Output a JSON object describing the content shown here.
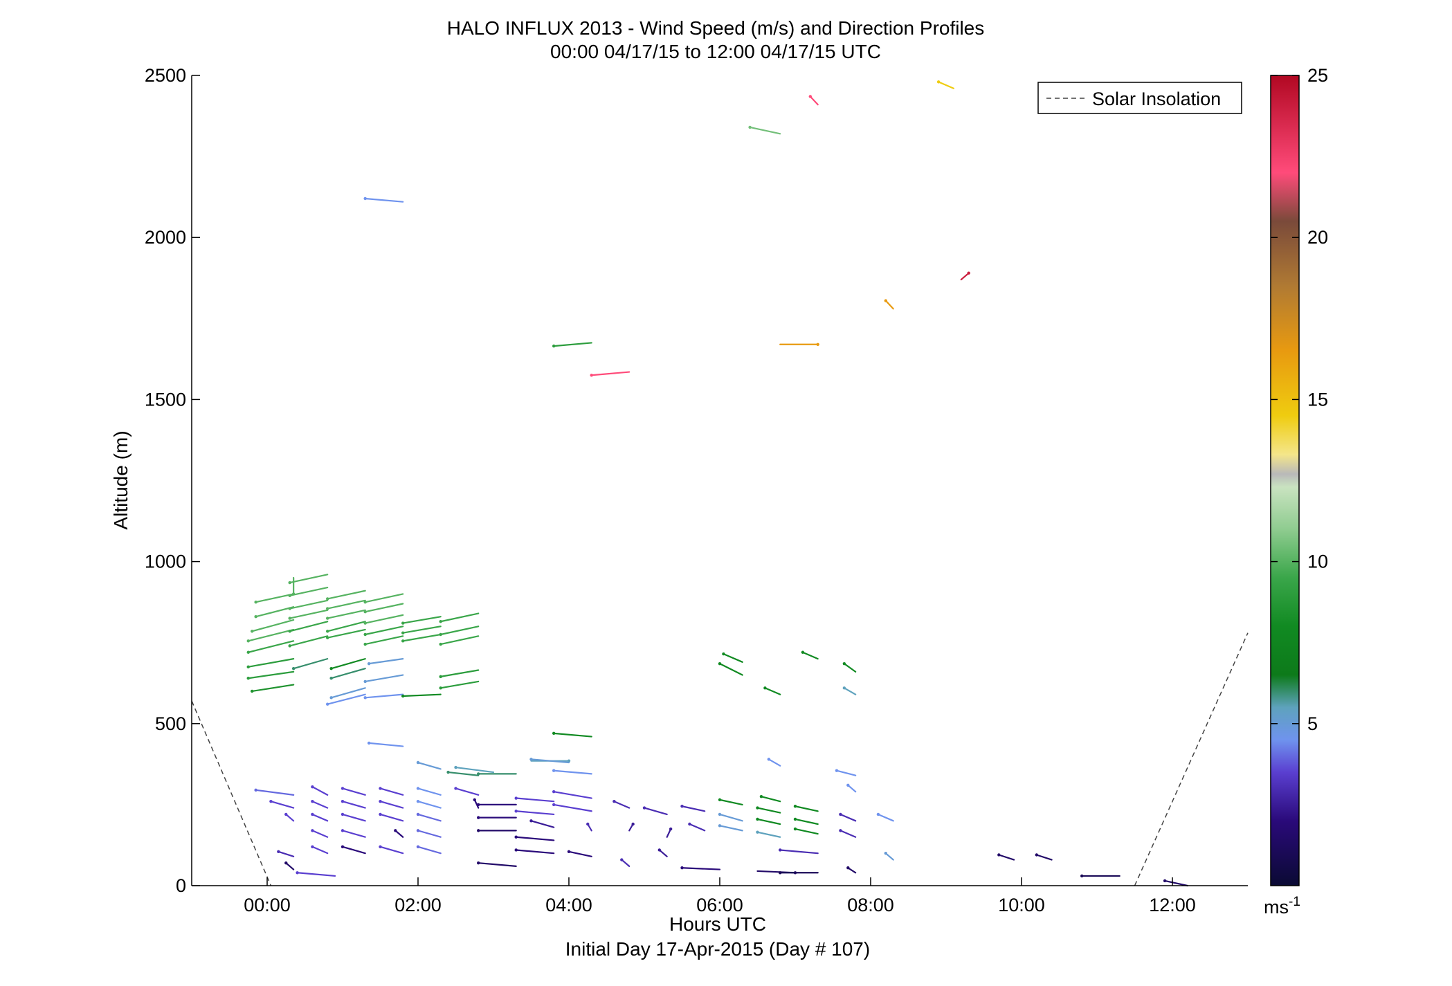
{
  "chart_data": {
    "type": "vector-field",
    "title": "HALO INFLUX 2013 - Wind Speed (m/s) and Direction Profiles",
    "subtitle": "00:00 04/17/15 to 12:00 04/17/15  UTC",
    "xlabel": "Hours UTC",
    "xlabel2": "Initial Day 17-Apr-2015 (Day # 107)",
    "ylabel": "Altitude (m)",
    "xlim": [
      -1,
      13
    ],
    "ylim": [
      0,
      2500
    ],
    "x_ticks": [
      0,
      2,
      4,
      6,
      8,
      10,
      12
    ],
    "x_tick_labels": [
      "00:00",
      "02:00",
      "04:00",
      "06:00",
      "08:00",
      "10:00",
      "12:00"
    ],
    "y_ticks": [
      0,
      500,
      1000,
      1500,
      2000,
      2500
    ],
    "y_tick_labels": [
      "0",
      "500",
      "1000",
      "1500",
      "2000",
      "2500"
    ],
    "legend": {
      "label": "Solar Insolation",
      "placement": "top-right"
    },
    "colorbar": {
      "min": 0,
      "max": 25,
      "ticks": [
        5,
        10,
        15,
        20,
        25
      ],
      "tick_labels": [
        "5",
        "10",
        "15",
        "20",
        "25"
      ],
      "unit_label": "ms",
      "unit_exponent": "-1",
      "stops": [
        [
          0,
          "#0a0a33"
        ],
        [
          2,
          "#2a0a7a"
        ],
        [
          3.5,
          "#5a3fd0"
        ],
        [
          4.5,
          "#6f93ee"
        ],
        [
          5.5,
          "#5ea2bd"
        ],
        [
          6.5,
          "#0d7a1a"
        ],
        [
          8,
          "#118a22"
        ],
        [
          9.5,
          "#3aa64a"
        ],
        [
          11,
          "#8fcc90"
        ],
        [
          12.3,
          "#c9e3c0"
        ],
        [
          12.7,
          "#b9b9b9"
        ],
        [
          13.3,
          "#f4e68a"
        ],
        [
          14.5,
          "#efcc10"
        ],
        [
          16.5,
          "#e89a10"
        ],
        [
          18.5,
          "#b07a33"
        ],
        [
          20.5,
          "#7a4a3a"
        ],
        [
          22,
          "#ff4b7a"
        ],
        [
          25,
          "#b10822"
        ]
      ]
    },
    "solar_insolation": [
      {
        "x": [
          -1.0,
          0.05
        ],
        "y": [
          570,
          0
        ]
      },
      {
        "x": [
          11.5,
          13.0
        ],
        "y": [
          0,
          780
        ]
      }
    ],
    "barbs": [
      [
        0.35,
        950,
        0,
        -0.5,
        10
      ],
      [
        0.35,
        900,
        -0.5,
        -0.25,
        10
      ],
      [
        0.35,
        860,
        -0.5,
        -0.3,
        10
      ],
      [
        0.35,
        820,
        -0.55,
        -0.35,
        10
      ],
      [
        0.35,
        790,
        -0.6,
        -0.35,
        10
      ],
      [
        0.35,
        755,
        -0.6,
        -0.35,
        9.5
      ],
      [
        0.35,
        700,
        -0.6,
        -0.25,
        9
      ],
      [
        0.35,
        660,
        -0.6,
        -0.2,
        9
      ],
      [
        0.35,
        620,
        -0.55,
        -0.2,
        8.5
      ],
      [
        0.8,
        960,
        -0.5,
        -0.25,
        10
      ],
      [
        0.8,
        920,
        -0.5,
        -0.25,
        10
      ],
      [
        0.8,
        880,
        -0.5,
        -0.25,
        10
      ],
      [
        0.8,
        850,
        -0.5,
        -0.25,
        10
      ],
      [
        0.8,
        815,
        -0.5,
        -0.3,
        9.5
      ],
      [
        0.8,
        770,
        -0.5,
        -0.3,
        9.5
      ],
      [
        0.8,
        700,
        -0.45,
        -0.3,
        6
      ],
      [
        1.3,
        910,
        -0.5,
        -0.25,
        10
      ],
      [
        1.3,
        880,
        -0.5,
        -0.25,
        10
      ],
      [
        1.3,
        850,
        -0.5,
        -0.25,
        10
      ],
      [
        1.3,
        815,
        -0.5,
        -0.3,
        9.5
      ],
      [
        1.3,
        790,
        -0.5,
        -0.25,
        9.5
      ],
      [
        1.3,
        700,
        -0.45,
        -0.3,
        8
      ],
      [
        1.3,
        670,
        -0.45,
        -0.3,
        6
      ],
      [
        1.3,
        610,
        -0.45,
        -0.3,
        5
      ],
      [
        1.3,
        590,
        -0.5,
        -0.3,
        4.5
      ],
      [
        1.8,
        900,
        -0.5,
        -0.25,
        10
      ],
      [
        1.8,
        870,
        -0.5,
        -0.25,
        10
      ],
      [
        1.8,
        835,
        -0.5,
        -0.25,
        10
      ],
      [
        1.8,
        800,
        -0.5,
        -0.25,
        9.5
      ],
      [
        1.8,
        770,
        -0.5,
        -0.25,
        9.5
      ],
      [
        1.8,
        700,
        -0.45,
        -0.15,
        5
      ],
      [
        1.8,
        650,
        -0.5,
        -0.2,
        5
      ],
      [
        1.8,
        590,
        -0.5,
        -0.1,
        4.5
      ],
      [
        2.3,
        830,
        -0.5,
        -0.2,
        9.5
      ],
      [
        2.3,
        800,
        -0.5,
        -0.2,
        9.5
      ],
      [
        2.3,
        775,
        -0.5,
        -0.2,
        9.5
      ],
      [
        2.3,
        590,
        -0.5,
        -0.05,
        8
      ],
      [
        2.8,
        840,
        -0.5,
        -0.25,
        9.5
      ],
      [
        2.8,
        800,
        -0.5,
        -0.25,
        9.5
      ],
      [
        2.8,
        770,
        -0.5,
        -0.25,
        9.5
      ],
      [
        2.8,
        665,
        -0.5,
        -0.2,
        9
      ],
      [
        2.8,
        630,
        -0.5,
        -0.2,
        9
      ],
      [
        2.8,
        340,
        -0.4,
        0.1,
        6
      ],
      [
        3.3,
        345,
        -0.5,
        0,
        6
      ],
      [
        3.0,
        350,
        -0.5,
        0.15,
        5.5
      ],
      [
        2.3,
        360,
        -0.3,
        0.2,
        5
      ],
      [
        3.5,
        385,
        0.5,
        0,
        5.5
      ],
      [
        4.0,
        380,
        -0.5,
        0.1,
        5
      ],
      [
        4.3,
        345,
        -0.5,
        0.1,
        4.5
      ],
      [
        1.8,
        430,
        -0.45,
        0.1,
        4.5
      ],
      [
        4.3,
        460,
        -0.5,
        0.1,
        8
      ],
      [
        4.3,
        1675,
        -0.5,
        -0.1,
        9
      ],
      [
        4.8,
        1585,
        -0.5,
        -0.1,
        22
      ],
      [
        6.8,
        1670,
        0.5,
        0,
        16.5
      ],
      [
        1.8,
        2110,
        -0.5,
        0.1,
        4.5
      ],
      [
        6.8,
        2320,
        -0.4,
        0.2,
        10.5
      ],
      [
        7.3,
        2410,
        -0.1,
        0.25,
        22
      ],
      [
        8.3,
        1780,
        -0.1,
        0.25,
        16.5
      ],
      [
        9.2,
        1870,
        0.1,
        0.2,
        24
      ],
      [
        9.1,
        2460,
        -0.2,
        0.2,
        14.5
      ],
      [
        6.3,
        690,
        -0.25,
        0.25,
        8
      ],
      [
        6.3,
        650,
        -0.3,
        0.35,
        8
      ],
      [
        6.8,
        590,
        -0.2,
        0.2,
        8
      ],
      [
        7.3,
        700,
        -0.2,
        0.2,
        8
      ],
      [
        7.8,
        660,
        -0.15,
        0.25,
        8
      ],
      [
        7.8,
        590,
        -0.15,
        0.2,
        5.5
      ],
      [
        6.8,
        370,
        -0.15,
        0.2,
        4.5
      ],
      [
        7.8,
        340,
        -0.25,
        0.15,
        4.5
      ],
      [
        7.8,
        290,
        -0.1,
        0.2,
        4.5
      ],
      [
        8.3,
        200,
        -0.2,
        0.2,
        4.5
      ],
      [
        6.3,
        250,
        -0.3,
        0.15,
        8
      ],
      [
        6.3,
        200,
        -0.3,
        0.2,
        5
      ],
      [
        6.3,
        170,
        -0.3,
        0.15,
        5
      ],
      [
        6.8,
        260,
        -0.25,
        0.15,
        8
      ],
      [
        6.8,
        225,
        -0.3,
        0.15,
        8
      ],
      [
        6.8,
        190,
        -0.3,
        0.15,
        8
      ],
      [
        6.8,
        150,
        -0.3,
        0.15,
        5.5
      ],
      [
        7.3,
        230,
        -0.3,
        0.15,
        8
      ],
      [
        7.3,
        190,
        -0.3,
        0.15,
        8
      ],
      [
        7.3,
        160,
        -0.3,
        0.15,
        8
      ],
      [
        0.35,
        280,
        -0.5,
        0.15,
        4
      ],
      [
        0.35,
        240,
        -0.3,
        0.2,
        3.5
      ],
      [
        0.35,
        200,
        -0.1,
        0.2,
        3.5
      ],
      [
        0.35,
        90,
        -0.2,
        0.15,
        3
      ],
      [
        0.35,
        50,
        -0.1,
        0.2,
        1.5
      ],
      [
        0.8,
        280,
        -0.2,
        0.25,
        3.5
      ],
      [
        0.8,
        240,
        -0.2,
        0.2,
        3.5
      ],
      [
        0.8,
        200,
        -0.2,
        0.2,
        3.5
      ],
      [
        0.8,
        150,
        -0.2,
        0.2,
        3.5
      ],
      [
        0.8,
        100,
        -0.2,
        0.2,
        3.5
      ],
      [
        0.9,
        30,
        -0.5,
        0.1,
        3.5
      ],
      [
        1.3,
        280,
        -0.3,
        0.2,
        3.5
      ],
      [
        1.3,
        240,
        -0.3,
        0.2,
        3.5
      ],
      [
        1.3,
        200,
        -0.3,
        0.2,
        3.5
      ],
      [
        1.3,
        150,
        -0.3,
        0.2,
        3.5
      ],
      [
        1.3,
        100,
        -0.3,
        0.2,
        2
      ],
      [
        1.8,
        280,
        -0.3,
        0.2,
        3.5
      ],
      [
        1.8,
        240,
        -0.3,
        0.2,
        3.5
      ],
      [
        1.8,
        200,
        -0.3,
        0.2,
        3.5
      ],
      [
        1.8,
        150,
        -0.1,
        0.2,
        2
      ],
      [
        1.8,
        100,
        -0.3,
        0.2,
        3.5
      ],
      [
        2.3,
        280,
        -0.3,
        0.2,
        4.5
      ],
      [
        2.3,
        240,
        -0.3,
        0.2,
        4.5
      ],
      [
        2.3,
        200,
        -0.3,
        0.2,
        4
      ],
      [
        2.3,
        150,
        -0.3,
        0.2,
        4
      ],
      [
        2.3,
        100,
        -0.3,
        0.2,
        4
      ],
      [
        2.8,
        280,
        -0.3,
        0.2,
        3.5
      ],
      [
        2.8,
        240,
        -0.05,
        0.25,
        2
      ],
      [
        3.3,
        250,
        -0.5,
        0,
        2
      ],
      [
        3.3,
        210,
        -0.5,
        0,
        2
      ],
      [
        3.3,
        170,
        -0.5,
        0,
        1.5
      ],
      [
        3.3,
        60,
        -0.5,
        0.1,
        1.5
      ],
      [
        3.8,
        260,
        -0.5,
        0.1,
        3.5
      ],
      [
        3.8,
        220,
        -0.5,
        0.1,
        3.5
      ],
      [
        3.8,
        180,
        -0.3,
        0.2,
        2.5
      ],
      [
        3.8,
        140,
        -0.5,
        0.1,
        2
      ],
      [
        3.8,
        100,
        -0.5,
        0.1,
        2
      ],
      [
        4.3,
        270,
        -0.5,
        0.2,
        3.5
      ],
      [
        4.3,
        230,
        -0.5,
        0.2,
        3.5
      ],
      [
        4.3,
        170,
        -0.05,
        0.2,
        3
      ],
      [
        4.3,
        90,
        -0.3,
        0.15,
        2
      ],
      [
        4.8,
        240,
        -0.2,
        0.2,
        3
      ],
      [
        4.8,
        170,
        0.05,
        0.2,
        2.5
      ],
      [
        4.8,
        60,
        -0.1,
        0.2,
        3
      ],
      [
        5.3,
        220,
        -0.3,
        0.2,
        3
      ],
      [
        5.3,
        150,
        0.05,
        0.25,
        2.5
      ],
      [
        5.3,
        90,
        -0.1,
        0.2,
        2.5
      ],
      [
        5.8,
        230,
        -0.3,
        0.15,
        3
      ],
      [
        5.8,
        170,
        -0.2,
        0.2,
        3
      ],
      [
        6.0,
        50,
        -0.5,
        0.05,
        2
      ],
      [
        6.5,
        45,
        0.5,
        -0.05,
        1.5
      ],
      [
        7.3,
        40,
        -0.5,
        0,
        1
      ],
      [
        7.3,
        100,
        -0.5,
        0.1,
        3
      ],
      [
        7.8,
        200,
        -0.2,
        0.2,
        3
      ],
      [
        7.8,
        150,
        -0.2,
        0.2,
        3
      ],
      [
        8.3,
        80,
        -0.1,
        0.2,
        5
      ],
      [
        7.8,
        40,
        -0.1,
        0.15,
        1.5
      ],
      [
        9.9,
        80,
        -0.2,
        0.15,
        1.5
      ],
      [
        10.4,
        80,
        -0.2,
        0.15,
        1.5
      ],
      [
        11.3,
        30,
        -0.5,
        0,
        1
      ],
      [
        12.2,
        0,
        -0.3,
        0.15,
        1.5
      ]
    ]
  }
}
